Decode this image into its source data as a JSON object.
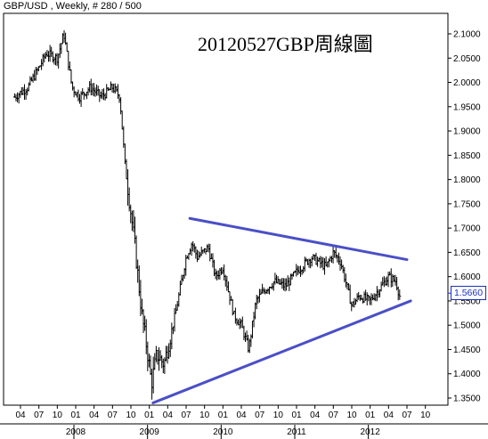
{
  "header": {
    "symbol_info": "GBP/USD , Weekly, # 280 / 500"
  },
  "chart_data": {
    "type": "candlestick",
    "title": "20120527GBP周線圖",
    "ylim": [
      1.33,
      2.13
    ],
    "y_ticks": [
      "2.1000",
      "2.0500",
      "2.0000",
      "1.9500",
      "1.9000",
      "1.8500",
      "1.8000",
      "1.7500",
      "1.7000",
      "1.6500",
      "1.6000",
      "1.5500",
      "1.5000",
      "1.4500",
      "1.4000",
      "1.3500"
    ],
    "y_tick_values": [
      2.1,
      2.05,
      2.0,
      1.95,
      1.9,
      1.85,
      1.8,
      1.75,
      1.7,
      1.65,
      1.6,
      1.55,
      1.5,
      1.45,
      1.4,
      1.35
    ],
    "x_month_ticks": [
      {
        "label": "04",
        "t": 2007.25
      },
      {
        "label": "07",
        "t": 2007.5
      },
      {
        "label": "10",
        "t": 2007.75
      },
      {
        "label": "01",
        "t": 2008.0
      },
      {
        "label": "04",
        "t": 2008.25
      },
      {
        "label": "07",
        "t": 2008.5
      },
      {
        "label": "10",
        "t": 2008.75
      },
      {
        "label": "01",
        "t": 2009.0
      },
      {
        "label": "04",
        "t": 2009.25
      },
      {
        "label": "07",
        "t": 2009.5
      },
      {
        "label": "10",
        "t": 2009.75
      },
      {
        "label": "01",
        "t": 2010.0
      },
      {
        "label": "04",
        "t": 2010.25
      },
      {
        "label": "07",
        "t": 2010.5
      },
      {
        "label": "10",
        "t": 2010.75
      },
      {
        "label": "01",
        "t": 2011.0
      },
      {
        "label": "04",
        "t": 2011.25
      },
      {
        "label": "07",
        "t": 2011.5
      },
      {
        "label": "10",
        "t": 2011.75
      },
      {
        "label": "01",
        "t": 2012.0
      },
      {
        "label": "04",
        "t": 2012.25
      },
      {
        "label": "07",
        "t": 2012.5
      },
      {
        "label": "10",
        "t": 2012.75
      }
    ],
    "x_year_labels": [
      {
        "label": "2008",
        "t": 2008.0
      },
      {
        "label": "2009",
        "t": 2009.0
      },
      {
        "label": "2010",
        "t": 2010.0
      },
      {
        "label": "2011",
        "t": 2011.0
      },
      {
        "label": "2012",
        "t": 2012.0
      }
    ],
    "price_path": [
      [
        2007.17,
        1.97
      ],
      [
        2007.35,
        1.99
      ],
      [
        2007.5,
        2.03
      ],
      [
        2007.6,
        2.06
      ],
      [
        2007.75,
        2.05
      ],
      [
        2007.84,
        2.1
      ],
      [
        2007.95,
        1.99
      ],
      [
        2008.05,
        1.97
      ],
      [
        2008.2,
        1.99
      ],
      [
        2008.35,
        1.97
      ],
      [
        2008.5,
        1.99
      ],
      [
        2008.6,
        1.97
      ],
      [
        2008.67,
        1.83
      ],
      [
        2008.8,
        1.67
      ],
      [
        2008.9,
        1.52
      ],
      [
        2008.97,
        1.45
      ],
      [
        2009.03,
        1.38
      ],
      [
        2009.1,
        1.44
      ],
      [
        2009.2,
        1.42
      ],
      [
        2009.35,
        1.52
      ],
      [
        2009.5,
        1.64
      ],
      [
        2009.58,
        1.67
      ],
      [
        2009.65,
        1.64
      ],
      [
        2009.8,
        1.66
      ],
      [
        2009.9,
        1.6
      ],
      [
        2010.0,
        1.62
      ],
      [
        2010.15,
        1.52
      ],
      [
        2010.25,
        1.5
      ],
      [
        2010.35,
        1.45
      ],
      [
        2010.45,
        1.55
      ],
      [
        2010.55,
        1.57
      ],
      [
        2010.7,
        1.59
      ],
      [
        2010.85,
        1.58
      ],
      [
        2011.0,
        1.61
      ],
      [
        2011.2,
        1.64
      ],
      [
        2011.4,
        1.62
      ],
      [
        2011.5,
        1.65
      ],
      [
        2011.6,
        1.63
      ],
      [
        2011.75,
        1.54
      ],
      [
        2011.85,
        1.56
      ],
      [
        2012.0,
        1.55
      ],
      [
        2012.1,
        1.57
      ],
      [
        2012.25,
        1.6
      ],
      [
        2012.35,
        1.59
      ],
      [
        2012.4,
        1.56
      ]
    ],
    "trendlines": [
      {
        "name": "resistance",
        "points": [
          [
            2009.55,
            1.72
          ],
          [
            2012.5,
            1.635
          ]
        ],
        "color": "#4a4fc7"
      },
      {
        "name": "support",
        "points": [
          [
            2009.05,
            1.34
          ],
          [
            2012.55,
            1.55
          ]
        ],
        "color": "#4a4fc7"
      }
    ],
    "last_price": "1.5660",
    "last_price_value": 1.566,
    "colors": {
      "candles": "#000000",
      "trend": "#4a4fc7",
      "last_box": "#1a2fbf",
      "grid_axis": "#000000"
    }
  }
}
